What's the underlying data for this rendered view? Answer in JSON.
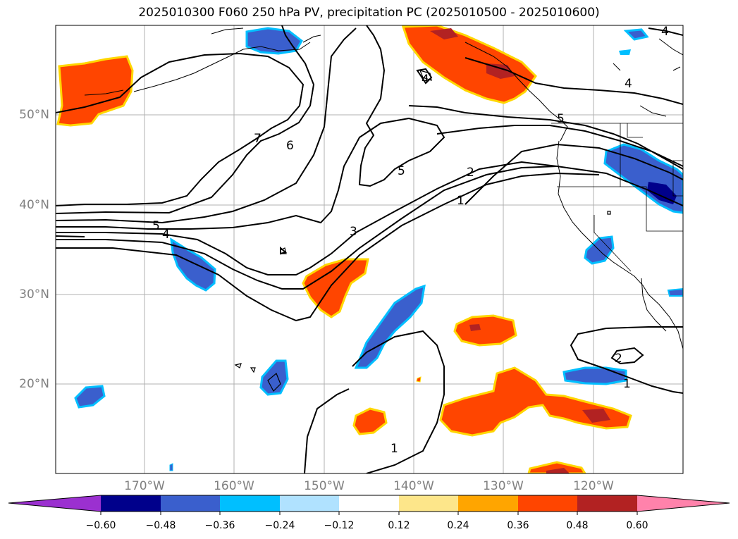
{
  "title": "2025010300 F060 250 hPa PV, precipitation PC (2025010500 - 2025010600)",
  "lat_labels": [
    "50°N",
    "40°N",
    "30°N",
    "20°N"
  ],
  "lon_labels": [
    "170°W",
    "160°W",
    "150°W",
    "140°W",
    "130°W",
    "120°W"
  ],
  "contour_labels": [
    "7",
    "6",
    "5",
    "4",
    "3",
    "2",
    "1",
    "5",
    "4",
    "4",
    "5",
    "2",
    "1",
    "1",
    "4"
  ],
  "colorbar": {
    "ticks": [
      "−0.60",
      "−0.48",
      "−0.36",
      "−0.24",
      "−0.12",
      "0.12",
      "0.24",
      "0.36",
      "0.48",
      "0.60"
    ],
    "colors": [
      "#9b30d0",
      "#00008b",
      "#3a5fcd",
      "#00bfff",
      "#b0e2ff",
      "#ffffff",
      "#fde68a",
      "#ffa500",
      "#ff4500",
      "#b22222",
      "#ff82ab"
    ]
  },
  "colors": {
    "negative_strong": "#3a5fcd",
    "negative_light": "#00bfff",
    "positive_strong": "#ff4500",
    "positive_dark": "#b22222",
    "positive_light": "#ffd700",
    "grid": "#b0b0b0",
    "axis_label": "#808080"
  }
}
